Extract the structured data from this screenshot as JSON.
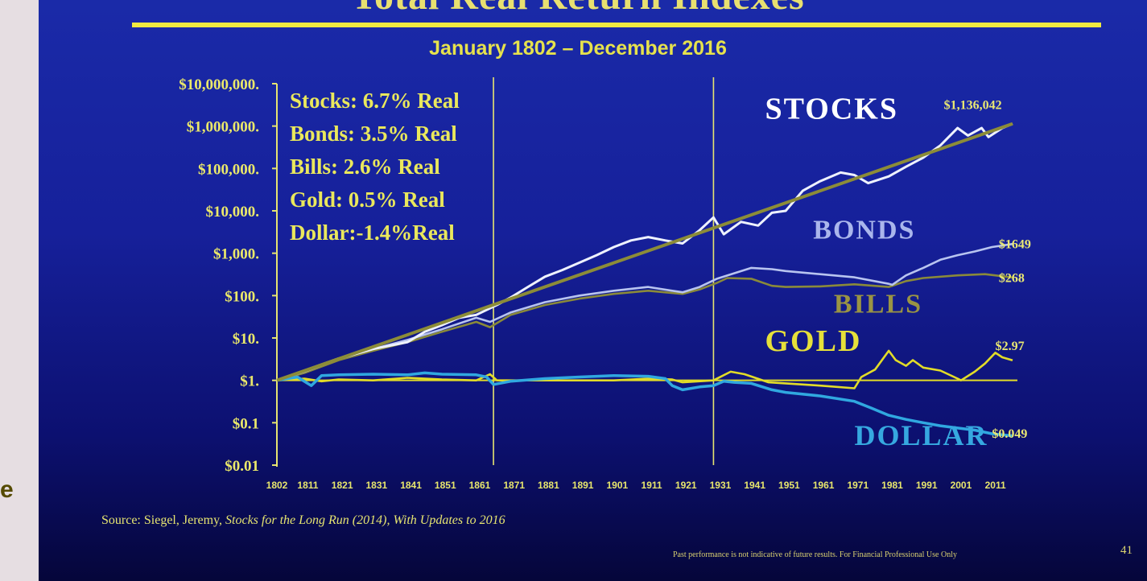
{
  "page": {
    "left_fragment": "e",
    "title": "Total Real Return Indexes",
    "subtitle": "January 1802 – December 2016",
    "source_prefix": "Source: Siegel, Jeremy, ",
    "source_italic": "Stocks for the Long Run (2014), With Updates to 2016",
    "disclaimer": "Past performance is not indicative of future results. For Financial Professional Use Only",
    "page_number": "41"
  },
  "chart_data": {
    "type": "line",
    "title": "Total Real Return Indexes",
    "subtitle": "January 1802 – December 2016",
    "y_scale": "log",
    "ylim": [
      0.01,
      10000000
    ],
    "xlim": [
      1802,
      2016
    ],
    "yticks": [
      {
        "value": 10000000,
        "label": "$10,000,000."
      },
      {
        "value": 1000000,
        "label": "$1,000,000."
      },
      {
        "value": 100000,
        "label": "$100,000."
      },
      {
        "value": 10000,
        "label": "$10,000."
      },
      {
        "value": 1000,
        "label": "$1,000."
      },
      {
        "value": 100,
        "label": "$100."
      },
      {
        "value": 10,
        "label": "$10."
      },
      {
        "value": 1,
        "label": "$1."
      },
      {
        "value": 0.1,
        "label": "$0.1"
      },
      {
        "value": 0.01,
        "label": "$0.01"
      }
    ],
    "xticks": [
      "1802",
      "1811",
      "1821",
      "1831",
      "1841",
      "1851",
      "1861",
      "1871",
      "1881",
      "1891",
      "1901",
      "1911",
      "1921",
      "1931",
      "1941",
      "1951",
      "1961",
      "1971",
      "1981",
      "1991",
      "2001",
      "2011"
    ],
    "xtick_values": [
      1802,
      1811,
      1821,
      1831,
      1841,
      1851,
      1861,
      1871,
      1881,
      1891,
      1901,
      1911,
      1921,
      1931,
      1941,
      1951,
      1961,
      1971,
      1981,
      1991,
      2001,
      2011
    ],
    "vertical_markers": [
      1865,
      1929
    ],
    "annual_rates": [
      "Stocks: 6.7% Real",
      "Bonds: 3.5% Real",
      "Bills:    2.6% Real",
      "Gold:   0.5% Real",
      "Dollar:-1.4%Real"
    ],
    "series": [
      {
        "name": "STOCKS",
        "end_label": "$1,136,042",
        "color": "#eef2ff",
        "label_color": "#ffffff",
        "label_size": 38,
        "label_pos": [
          1944,
          1500000
        ],
        "end_label_pos": [
          1996,
          2500000
        ],
        "points": [
          [
            1802,
            1
          ],
          [
            1810,
            1.7
          ],
          [
            1820,
            3.3
          ],
          [
            1830,
            5.5
          ],
          [
            1840,
            8
          ],
          [
            1845,
            14
          ],
          [
            1850,
            20
          ],
          [
            1855,
            30
          ],
          [
            1860,
            35
          ],
          [
            1866,
            60
          ],
          [
            1870,
            90
          ],
          [
            1875,
            160
          ],
          [
            1880,
            280
          ],
          [
            1885,
            400
          ],
          [
            1890,
            600
          ],
          [
            1895,
            900
          ],
          [
            1900,
            1400
          ],
          [
            1905,
            2000
          ],
          [
            1910,
            2400
          ],
          [
            1915,
            2000
          ],
          [
            1920,
            1700
          ],
          [
            1925,
            3500
          ],
          [
            1929,
            7000
          ],
          [
            1932,
            2800
          ],
          [
            1937,
            5500
          ],
          [
            1942,
            4500
          ],
          [
            1946,
            9000
          ],
          [
            1950,
            10000
          ],
          [
            1955,
            30000
          ],
          [
            1960,
            50000
          ],
          [
            1966,
            80000
          ],
          [
            1970,
            70000
          ],
          [
            1974,
            45000
          ],
          [
            1980,
            65000
          ],
          [
            1985,
            110000
          ],
          [
            1990,
            180000
          ],
          [
            1995,
            350000
          ],
          [
            2000,
            900000
          ],
          [
            2003,
            600000
          ],
          [
            2007,
            900000
          ],
          [
            2009,
            550000
          ],
          [
            2013,
            900000
          ],
          [
            2016,
            1136042
          ]
        ]
      },
      {
        "name": "BONDS",
        "end_label": "$1649",
        "color": "#b8c4f0",
        "label_color": "#aab6ec",
        "label_size": 34,
        "label_pos": [
          1958,
          2200
        ],
        "end_label_pos": [
          2012,
          1300
        ],
        "points": [
          [
            1802,
            1
          ],
          [
            1810,
            1.6
          ],
          [
            1820,
            3.2
          ],
          [
            1830,
            5.5
          ],
          [
            1840,
            9
          ],
          [
            1850,
            16
          ],
          [
            1860,
            30
          ],
          [
            1864,
            24
          ],
          [
            1870,
            40
          ],
          [
            1880,
            70
          ],
          [
            1890,
            100
          ],
          [
            1900,
            130
          ],
          [
            1910,
            160
          ],
          [
            1917,
            130
          ],
          [
            1920,
            120
          ],
          [
            1925,
            160
          ],
          [
            1930,
            250
          ],
          [
            1940,
            450
          ],
          [
            1946,
            420
          ],
          [
            1950,
            380
          ],
          [
            1960,
            320
          ],
          [
            1970,
            270
          ],
          [
            1980,
            190
          ],
          [
            1981,
            180
          ],
          [
            1985,
            300
          ],
          [
            1990,
            450
          ],
          [
            1995,
            700
          ],
          [
            2000,
            900
          ],
          [
            2005,
            1100
          ],
          [
            2010,
            1400
          ],
          [
            2016,
            1649
          ]
        ]
      },
      {
        "name": "BILLS",
        "end_label": "$268",
        "color": "#8a8a3a",
        "label_color": "#9a9444",
        "label_size": 34,
        "label_pos": [
          1964,
          40
        ],
        "end_label_pos": [
          2012,
          210
        ],
        "points": [
          [
            1802,
            1
          ],
          [
            1810,
            1.5
          ],
          [
            1820,
            3
          ],
          [
            1830,
            5
          ],
          [
            1840,
            8
          ],
          [
            1850,
            14
          ],
          [
            1860,
            24
          ],
          [
            1864,
            18
          ],
          [
            1870,
            35
          ],
          [
            1880,
            60
          ],
          [
            1890,
            85
          ],
          [
            1900,
            110
          ],
          [
            1910,
            130
          ],
          [
            1917,
            115
          ],
          [
            1920,
            110
          ],
          [
            1925,
            140
          ],
          [
            1930,
            200
          ],
          [
            1933,
            260
          ],
          [
            1940,
            250
          ],
          [
            1946,
            170
          ],
          [
            1950,
            160
          ],
          [
            1960,
            165
          ],
          [
            1970,
            185
          ],
          [
            1980,
            160
          ],
          [
            1985,
            220
          ],
          [
            1990,
            260
          ],
          [
            2000,
            300
          ],
          [
            2008,
            320
          ],
          [
            2016,
            268
          ]
        ]
      },
      {
        "name": "GOLD",
        "end_label": "$2.97",
        "color": "#e2dc28",
        "label_color": "#e6e03a",
        "label_size": 38,
        "label_pos": [
          1944,
          5
        ],
        "end_label_pos": [
          2011,
          5.2
        ],
        "points": [
          [
            1802,
            1
          ],
          [
            1810,
            1.1
          ],
          [
            1815,
            0.95
          ],
          [
            1820,
            1.05
          ],
          [
            1830,
            1
          ],
          [
            1840,
            1.15
          ],
          [
            1850,
            1.05
          ],
          [
            1860,
            1
          ],
          [
            1864,
            1.4
          ],
          [
            1866,
            1
          ],
          [
            1870,
            1
          ],
          [
            1880,
            1
          ],
          [
            1890,
            1
          ],
          [
            1900,
            1
          ],
          [
            1910,
            1.1
          ],
          [
            1917,
            1.05
          ],
          [
            1920,
            0.9
          ],
          [
            1929,
            1
          ],
          [
            1934,
            1.6
          ],
          [
            1938,
            1.4
          ],
          [
            1945,
            0.9
          ],
          [
            1950,
            0.85
          ],
          [
            1960,
            0.75
          ],
          [
            1970,
            0.65
          ],
          [
            1972,
            1.2
          ],
          [
            1976,
            1.8
          ],
          [
            1980,
            5
          ],
          [
            1982,
            3
          ],
          [
            1985,
            2.2
          ],
          [
            1987,
            3
          ],
          [
            1990,
            2
          ],
          [
            1995,
            1.7
          ],
          [
            2000,
            1.1
          ],
          [
            2001,
            1
          ],
          [
            2005,
            1.6
          ],
          [
            2008,
            2.5
          ],
          [
            2011,
            4.5
          ],
          [
            2013,
            3.5
          ],
          [
            2016,
            2.97
          ]
        ]
      },
      {
        "name": "DOLLAR",
        "end_label": "$0.049",
        "color": "#30a8e0",
        "label_color": "#36a8e0",
        "label_size": 36,
        "label_pos": [
          1970,
          0.03
        ],
        "end_label_pos": [
          2010,
          0.044
        ],
        "points": [
          [
            1802,
            1
          ],
          [
            1808,
            1.2
          ],
          [
            1812,
            0.75
          ],
          [
            1815,
            1.3
          ],
          [
            1820,
            1.35
          ],
          [
            1830,
            1.4
          ],
          [
            1840,
            1.35
          ],
          [
            1845,
            1.5
          ],
          [
            1850,
            1.4
          ],
          [
            1860,
            1.35
          ],
          [
            1863,
            1.2
          ],
          [
            1865,
            0.8
          ],
          [
            1870,
            0.95
          ],
          [
            1880,
            1.1
          ],
          [
            1890,
            1.2
          ],
          [
            1900,
            1.3
          ],
          [
            1910,
            1.25
          ],
          [
            1915,
            1.1
          ],
          [
            1917,
            0.75
          ],
          [
            1920,
            0.6
          ],
          [
            1925,
            0.7
          ],
          [
            1929,
            0.75
          ],
          [
            1932,
            0.95
          ],
          [
            1935,
            0.9
          ],
          [
            1940,
            0.85
          ],
          [
            1946,
            0.6
          ],
          [
            1950,
            0.52
          ],
          [
            1960,
            0.43
          ],
          [
            1970,
            0.32
          ],
          [
            1975,
            0.22
          ],
          [
            1980,
            0.15
          ],
          [
            1985,
            0.12
          ],
          [
            1990,
            0.1
          ],
          [
            1995,
            0.085
          ],
          [
            2000,
            0.075
          ],
          [
            2005,
            0.067
          ],
          [
            2010,
            0.055
          ],
          [
            2016,
            0.049
          ]
        ]
      }
    ],
    "reference_line": {
      "value": 1,
      "color": "#e2dc28"
    }
  }
}
